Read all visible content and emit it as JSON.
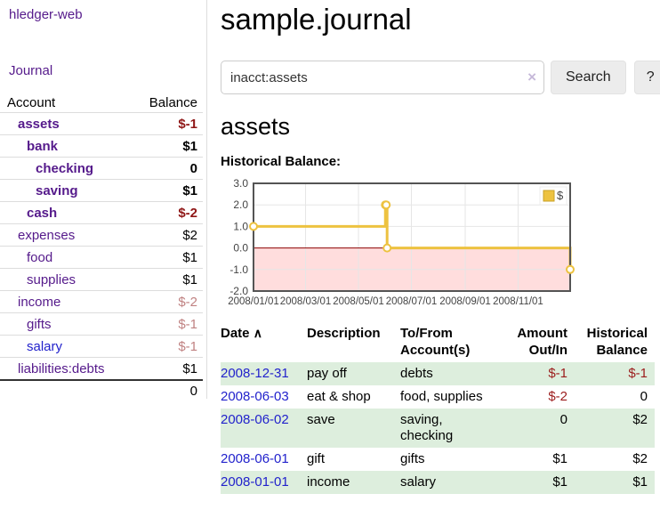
{
  "app": {
    "title": "hledger-web"
  },
  "colors": {
    "link_purple": "#551a8b",
    "link_blue": "#2222cc",
    "negative_strong": "#8f1616",
    "negative_soft": "#c08282",
    "row_stripe_green": "#ddeedd",
    "chart_series_gold": "#edc240",
    "chart_negative_region": "#ffdddd",
    "chart_zero_line": "#8b0000"
  },
  "sidebar": {
    "journal_link": "Journal",
    "headers": {
      "account": "Account",
      "balance": "Balance"
    },
    "accounts": [
      {
        "name": "assets",
        "balance": "$-1"
      },
      {
        "name": "bank",
        "balance": "$1"
      },
      {
        "name": "checking",
        "balance": "0"
      },
      {
        "name": "saving",
        "balance": "$1"
      },
      {
        "name": "cash",
        "balance": "$-2"
      },
      {
        "name": "expenses",
        "balance": "$2"
      },
      {
        "name": "food",
        "balance": "$1"
      },
      {
        "name": "supplies",
        "balance": "$1"
      },
      {
        "name": "income",
        "balance": "$-2"
      },
      {
        "name": "gifts",
        "balance": "$-1"
      },
      {
        "name": "salary",
        "balance": "$-1"
      },
      {
        "name": "liabilities:debts",
        "balance": "$1"
      }
    ],
    "total": "0"
  },
  "main": {
    "title": "sample.journal",
    "search": {
      "value": "inacct:assets",
      "clear_glyph": "×",
      "search_button": "Search",
      "help_button": "?"
    },
    "account_heading": "assets",
    "chart_label": "Historical Balance:"
  },
  "chart_data": {
    "type": "line",
    "subtype": "step",
    "title": "Historical Balance:",
    "legend": "$",
    "legend_position": "top-right",
    "grid": true,
    "xlim": [
      "2008-01-01",
      "2008-12-31"
    ],
    "ylim": [
      -2.0,
      3.0
    ],
    "x_ticks": [
      "2008/01/01",
      "2008/03/01",
      "2008/05/01",
      "2008/07/01",
      "2008/09/01",
      "2008/11/01"
    ],
    "y_ticks": [
      3.0,
      2.0,
      1.0,
      0.0,
      -1.0,
      -2.0
    ],
    "series": [
      {
        "name": "$",
        "points": [
          {
            "date": "2008-01-01",
            "value": 1
          },
          {
            "date": "2008-06-01",
            "value": 2
          },
          {
            "date": "2008-06-02",
            "value": 2
          },
          {
            "date": "2008-06-03",
            "value": 0
          },
          {
            "date": "2008-12-31",
            "value": -1
          }
        ]
      }
    ],
    "series_color": "#edc240",
    "negative_fill": "#ffdddd",
    "zero_line_color": "#8b0000"
  },
  "register": {
    "sort_glyph": "∧",
    "headers": {
      "date": "Date",
      "description": "Description",
      "accounts": "To/From Account(s)",
      "amount": "Amount Out/In",
      "balance": "Historical Balance"
    },
    "rows": [
      {
        "date": "2008-12-31",
        "description": "pay off",
        "accounts": "debts",
        "amount": "$-1",
        "balance": "$-1"
      },
      {
        "date": "2008-06-03",
        "description": "eat & shop",
        "accounts": "food, supplies",
        "amount": "$-2",
        "balance": "0"
      },
      {
        "date": "2008-06-02",
        "description": "save",
        "accounts": "saving, checking",
        "amount": "0",
        "balance": "$2"
      },
      {
        "date": "2008-06-01",
        "description": "gift",
        "accounts": "gifts",
        "amount": "$1",
        "balance": "$2"
      },
      {
        "date": "2008-01-01",
        "description": "income",
        "accounts": "salary",
        "amount": "$1",
        "balance": "$1"
      }
    ]
  }
}
